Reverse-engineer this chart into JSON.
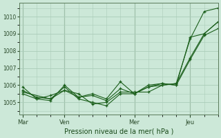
{
  "background_color": "#cce8d8",
  "grid_color": "#aaccb8",
  "line_color": "#1a5e1a",
  "marker_color": "#1a5e1a",
  "xlabel": "Pression niveau de la mer( hPa )",
  "yticks": [
    1005,
    1006,
    1007,
    1008,
    1009,
    1010
  ],
  "ylim": [
    1004.3,
    1010.8
  ],
  "x_tick_labels": [
    "Mar",
    "Ven",
    "Mer",
    "Jeu"
  ],
  "x_tick_positions": [
    0,
    24,
    64,
    96
  ],
  "xlim": [
    -2,
    112
  ],
  "series": [
    {
      "x": [
        0,
        8,
        16,
        24,
        32,
        40,
        48,
        56,
        64,
        72,
        80,
        88,
        96,
        104,
        112
      ],
      "y": [
        1005.7,
        1005.3,
        1005.2,
        1005.9,
        1005.2,
        1005.0,
        1004.8,
        1005.5,
        1005.5,
        1005.9,
        1006.1,
        1006.0,
        1008.8,
        1009.0,
        1009.7
      ]
    },
    {
      "x": [
        0,
        8,
        16,
        24,
        32,
        40,
        48,
        56,
        64,
        72,
        80,
        88,
        96,
        104,
        112
      ],
      "y": [
        1005.5,
        1005.2,
        1005.4,
        1005.7,
        1005.3,
        1005.4,
        1005.1,
        1005.8,
        1005.5,
        1006.0,
        1006.1,
        1006.0,
        1007.5,
        1008.9,
        1009.3
      ]
    },
    {
      "x": [
        0,
        8,
        16,
        24,
        32,
        40,
        48,
        56,
        64,
        72,
        80,
        88,
        96,
        104,
        112
      ],
      "y": [
        1005.9,
        1005.2,
        1005.1,
        1006.0,
        1005.3,
        1005.5,
        1005.2,
        1006.2,
        1005.5,
        1005.9,
        1006.0,
        1006.1,
        1008.7,
        1010.3,
        1010.5
      ]
    },
    {
      "x": [
        0,
        16,
        24,
        32,
        40,
        48,
        56,
        64,
        72,
        80,
        88,
        96,
        104,
        112
      ],
      "y": [
        1005.6,
        1005.2,
        1005.7,
        1005.5,
        1004.9,
        1005.0,
        1005.6,
        1005.6,
        1005.6,
        1006.0,
        1006.1,
        1007.6,
        1009.0,
        1009.7
      ]
    }
  ],
  "figsize": [
    3.2,
    2.0
  ],
  "dpi": 100
}
